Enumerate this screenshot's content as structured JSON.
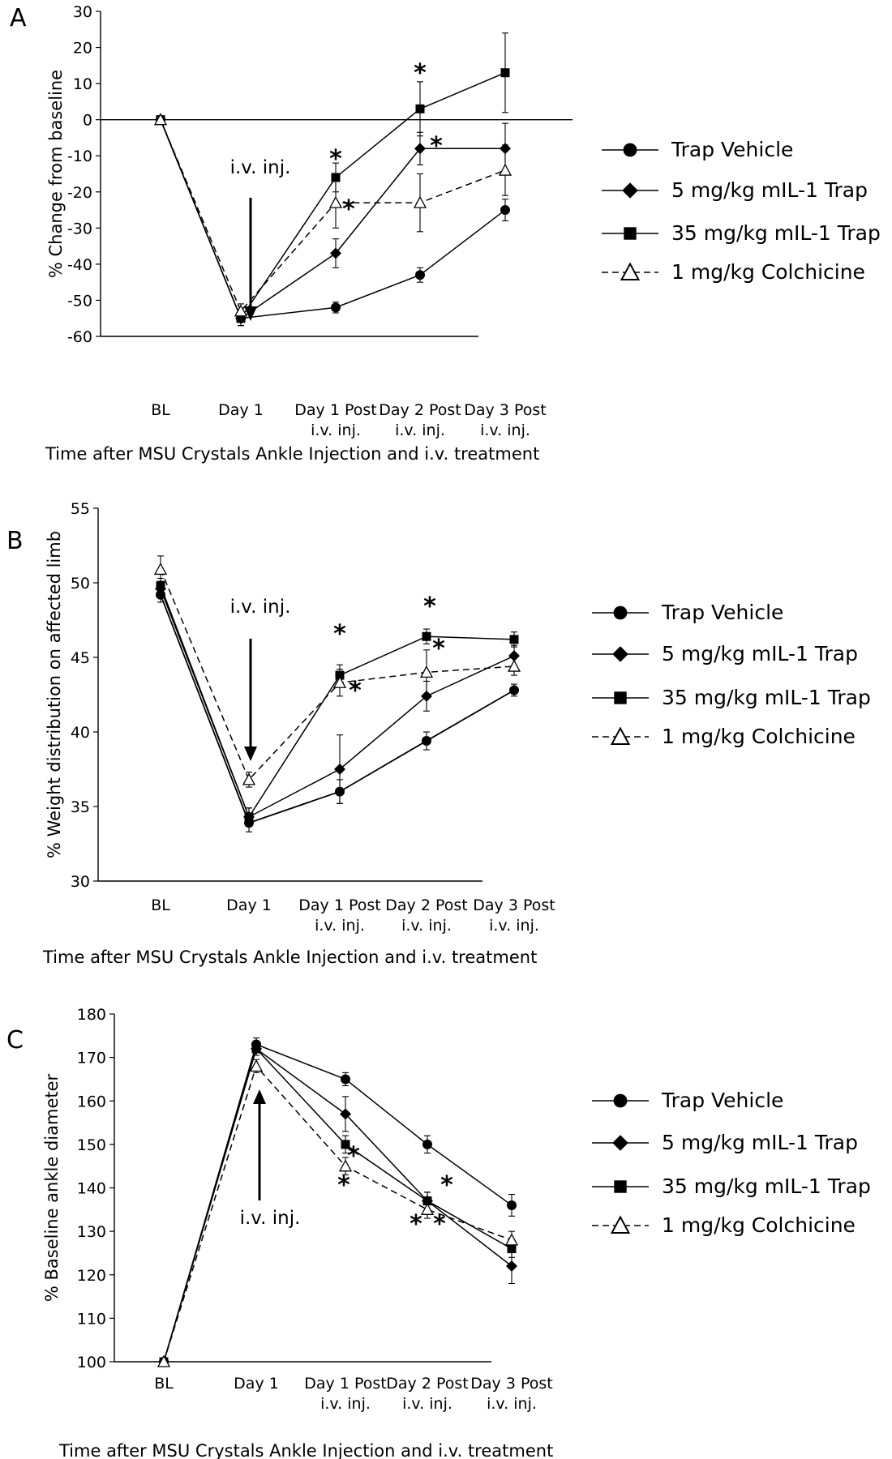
{
  "chart_data": [
    {
      "panel_label": "A",
      "type": "line",
      "ylabel": "% Change from baseline",
      "xlabel": "Time after MSU Crystals Ankle Injection and i.v. treatment",
      "categories": [
        [
          "BL"
        ],
        [
          "Day 1"
        ],
        [
          "Day 1 Post",
          "i.v. inj."
        ],
        [
          "Day 2 Post",
          "i.v. inj."
        ],
        [
          "Day 3 Post",
          "i.v. inj."
        ]
      ],
      "ylim": [
        -60,
        30
      ],
      "yticks": [
        30,
        20,
        10,
        0,
        -10,
        -20,
        -30,
        -40,
        -50,
        -60
      ],
      "zero_line": true,
      "annotation": "i.v. inj.",
      "series": [
        {
          "name": "Trap Vehicle",
          "marker": "circle",
          "dash": false,
          "values": [
            0,
            -55,
            -52,
            -43,
            -25
          ],
          "errors": [
            0,
            2,
            1.5,
            2,
            3
          ]
        },
        {
          "name": "5 mg/kg mIL-1 Trap",
          "marker": "diamond",
          "dash": false,
          "values": [
            0,
            -55,
            -37,
            -8,
            -8
          ],
          "errors": [
            0,
            2,
            4,
            4.5,
            7
          ]
        },
        {
          "name": "35 mg/kg mIL-1 Trap",
          "marker": "square",
          "dash": false,
          "values": [
            0,
            -55,
            -16,
            3,
            13
          ],
          "errors": [
            0,
            2,
            4,
            7.5,
            11
          ]
        },
        {
          "name": "1 mg/kg Colchicine",
          "marker": "triangle",
          "dash": true,
          "values": [
            0,
            -53,
            -23,
            -23,
            -14
          ],
          "errors": [
            0,
            2,
            7,
            8,
            7
          ]
        }
      ],
      "significance": [
        "*",
        "*",
        "*",
        "*"
      ]
    },
    {
      "panel_label": "B",
      "type": "line",
      "ylabel": "% Weight distribution on affected limb",
      "xlabel": "Time after MSU Crystals Ankle Injection and i.v. treatment",
      "categories": [
        [
          "BL"
        ],
        [
          "Day 1"
        ],
        [
          "Day 1 Post",
          "i.v. inj."
        ],
        [
          "Day 2 Post",
          "i.v. inj."
        ],
        [
          "Day 3 Post",
          "i.v. inj."
        ]
      ],
      "ylim": [
        30,
        55
      ],
      "yticks": [
        55,
        50,
        45,
        40,
        35,
        30
      ],
      "zero_line": false,
      "annotation": "i.v. inj.",
      "series": [
        {
          "name": "Trap Vehicle",
          "marker": "circle",
          "dash": false,
          "values": [
            49.2,
            33.9,
            36.0,
            39.4,
            42.8
          ],
          "errors": [
            0.5,
            0.6,
            0.8,
            0.6,
            0.4
          ]
        },
        {
          "name": "5 mg/kg mIL-1 Trap",
          "marker": "diamond",
          "dash": false,
          "values": [
            49.6,
            34.3,
            37.5,
            42.4,
            45.1
          ],
          "errors": [
            0.5,
            0.6,
            2.3,
            1.0,
            0.7
          ]
        },
        {
          "name": "35 mg/kg mIL-1 Trap",
          "marker": "square",
          "dash": false,
          "values": [
            49.8,
            34.3,
            43.8,
            46.4,
            46.2
          ],
          "errors": [
            0.5,
            0.6,
            0.7,
            0.5,
            0.5
          ]
        },
        {
          "name": "1 mg/kg Colchicine",
          "marker": "triangle",
          "dash": true,
          "values": [
            50.9,
            36.8,
            43.3,
            44.0,
            44.4
          ],
          "errors": [
            0.9,
            0.5,
            0.9,
            1.5,
            0.6
          ]
        }
      ],
      "significance": [
        "*",
        "*",
        "*",
        "*"
      ]
    },
    {
      "panel_label": "C",
      "type": "line",
      "ylabel": "% Baseline ankle diameter",
      "xlabel": "Time after MSU Crystals Ankle Injection and i.v. treatment",
      "categories": [
        [
          "BL"
        ],
        [
          "Day 1"
        ],
        [
          "Day 1 Post",
          "i.v. inj."
        ],
        [
          "Day 2 Post",
          "i.v. inj."
        ],
        [
          "Day 3 Post",
          "i.v. inj."
        ]
      ],
      "ylim": [
        100,
        180
      ],
      "yticks": [
        180,
        170,
        160,
        150,
        140,
        130,
        120,
        110,
        100
      ],
      "zero_line": false,
      "annotation": "i.v. inj.",
      "series": [
        {
          "name": "Trap Vehicle",
          "marker": "circle",
          "dash": false,
          "values": [
            100,
            173,
            165,
            150,
            136
          ],
          "errors": [
            0,
            1.5,
            1.5,
            2,
            2.5
          ]
        },
        {
          "name": "5 mg/kg mIL-1 Trap",
          "marker": "diamond",
          "dash": false,
          "values": [
            100,
            172,
            157,
            137,
            122
          ],
          "errors": [
            0,
            1.5,
            4,
            2,
            4
          ]
        },
        {
          "name": "35 mg/kg mIL-1 Trap",
          "marker": "square",
          "dash": false,
          "values": [
            100,
            172,
            150,
            137,
            126
          ],
          "errors": [
            0,
            1.5,
            2,
            2,
            2
          ]
        },
        {
          "name": "1 mg/kg Colchicine",
          "marker": "triangle",
          "dash": true,
          "values": [
            100,
            168,
            145,
            135,
            128
          ],
          "errors": [
            0,
            1.5,
            2,
            2,
            2
          ]
        }
      ],
      "significance": [
        "*",
        "*",
        "*",
        "*",
        "*"
      ]
    }
  ]
}
